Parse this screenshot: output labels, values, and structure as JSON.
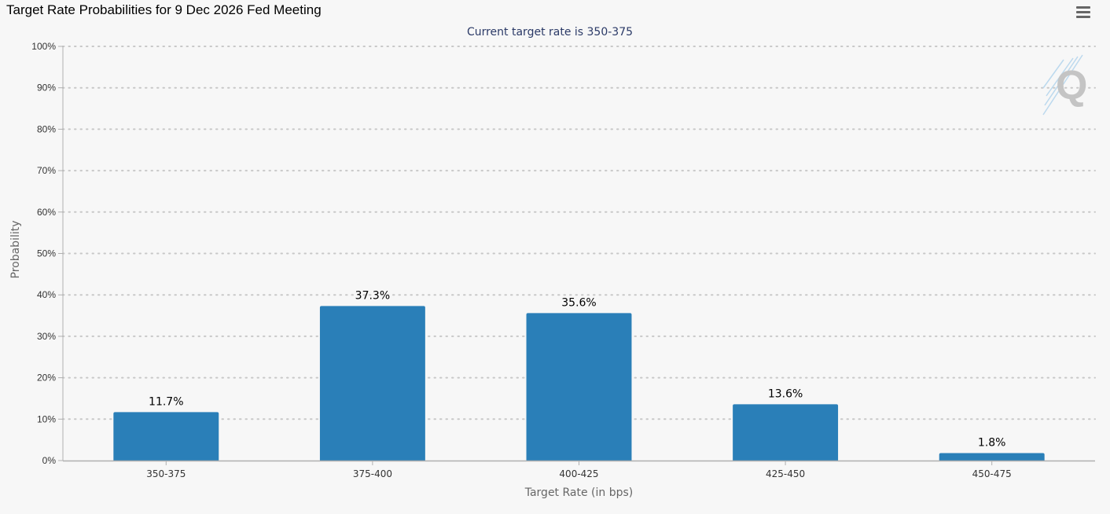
{
  "chart_title": "Target Rate Probabilities for 9 Dec 2026 Fed Meeting",
  "menu_icon": "hamburger-menu-icon",
  "watermark_icon": "q-logo-icon",
  "colors": {
    "bar": "#2a7fb8",
    "grid": "#c8c8c8",
    "axis": "#b0b0b0",
    "text": "#333333",
    "subtitle": "#2b3a67"
  },
  "chart_data": {
    "type": "bar",
    "title": "Target Rate Probabilities for 9 Dec 2026 Fed Meeting",
    "subtitle": "Current target rate is 350-375",
    "xlabel": "Target Rate (in bps)",
    "ylabel": "Probability",
    "categories": [
      "350-375",
      "375-400",
      "400-425",
      "425-450",
      "450-475"
    ],
    "values": [
      11.7,
      37.3,
      35.6,
      13.6,
      1.8
    ],
    "data_labels": [
      "11.7%",
      "37.3%",
      "35.6%",
      "13.6%",
      "1.8%"
    ],
    "ylim": [
      0,
      100
    ],
    "yticks": [
      0,
      10,
      20,
      30,
      40,
      50,
      60,
      70,
      80,
      90,
      100
    ],
    "ytick_labels": [
      "0%",
      "10%",
      "20%",
      "30%",
      "40%",
      "50%",
      "60%",
      "70%",
      "80%",
      "90%",
      "100%"
    ],
    "grid": true,
    "legend": "none"
  }
}
